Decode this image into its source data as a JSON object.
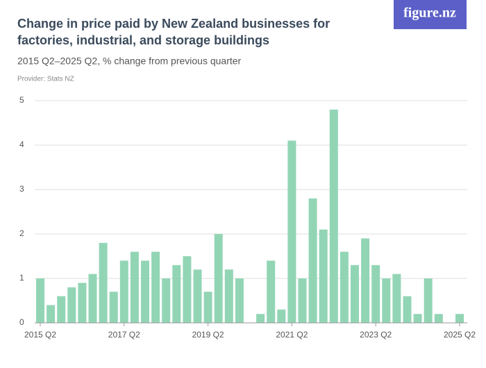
{
  "chart_data": {
    "type": "bar",
    "title": "Change in price paid by New Zealand businesses for factories, industrial, and storage buildings",
    "subtitle": "2015 Q2–2025 Q2, % change from previous quarter",
    "provider": "Provider: Stats NZ",
    "brand": "figure.nz",
    "categories": [
      "2015 Q2",
      null,
      null,
      null,
      null,
      null,
      null,
      null,
      "2017 Q2",
      null,
      null,
      null,
      null,
      null,
      null,
      null,
      "2019 Q2",
      null,
      null,
      null,
      null,
      null,
      null,
      null,
      "2021 Q2",
      null,
      null,
      null,
      null,
      null,
      null,
      null,
      "2023 Q2",
      null,
      null,
      null,
      null,
      null,
      null,
      null,
      "2025 Q2"
    ],
    "values": [
      1.0,
      0.4,
      0.6,
      0.8,
      0.9,
      1.1,
      1.8,
      0.7,
      1.4,
      1.6,
      1.4,
      1.6,
      1.0,
      1.3,
      1.5,
      1.2,
      0.7,
      2.0,
      1.2,
      1.0,
      0,
      0.2,
      1.4,
      0.3,
      4.1,
      1.0,
      2.8,
      2.1,
      4.8,
      1.6,
      1.3,
      1.9,
      1.3,
      1.0,
      1.1,
      0.6,
      0.2,
      1.0,
      0.2,
      0,
      0.2
    ],
    "color": "#92d5b5",
    "ylim": [
      0,
      5
    ],
    "yticks": [
      0,
      1,
      2,
      3,
      4,
      5
    ],
    "grid": true
  }
}
